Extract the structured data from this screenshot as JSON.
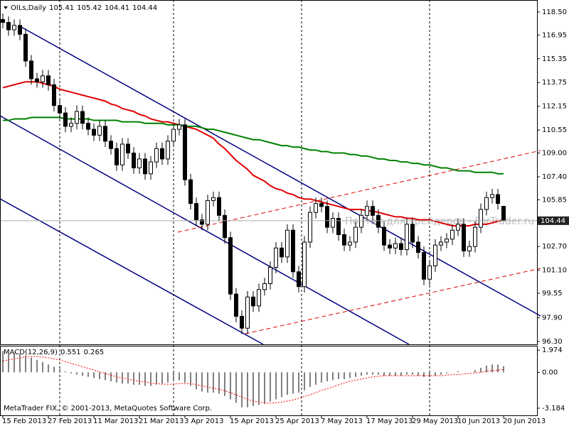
{
  "chart_data": [
    {
      "type": "candlestick",
      "title": "OILs,Daily",
      "watermark": "Портал для трейдеров - ForTrader.ru",
      "categories": [
        "15 Feb 2013",
        null,
        null,
        null,
        null,
        null,
        null,
        null,
        "27 Feb 2013",
        null,
        null,
        null,
        null,
        null,
        null,
        null,
        "11 Mar 2013",
        null,
        null,
        null,
        null,
        null,
        null,
        null,
        "21 Mar 2013",
        null,
        null,
        null,
        null,
        null,
        null,
        null,
        "3 Apr 2013",
        null,
        null,
        null,
        null,
        null,
        null,
        null,
        "15 Apr 2013",
        null,
        null,
        null,
        null,
        null,
        null,
        null,
        "25 Apr 2013",
        null,
        null,
        null,
        null,
        null,
        null,
        null,
        "7 May 2013",
        null,
        null,
        null,
        null,
        null,
        null,
        null,
        "17 May 2013",
        null,
        null,
        null,
        null,
        null,
        null,
        null,
        "29 May 2013",
        null,
        null,
        null,
        null,
        null,
        null,
        null,
        "10 Jun 2013",
        null,
        null,
        null,
        null,
        null,
        null,
        null,
        "20 Jun 2013"
      ],
      "open": [
        118.0,
        117.8,
        117.3,
        117.6,
        117.0,
        115.2,
        114.0,
        113.8,
        114.2,
        113.6,
        112.2,
        111.7,
        110.8,
        111.0,
        111.8,
        111.0,
        110.6,
        110.2,
        110.8,
        109.8,
        109.3,
        108.2,
        109.6,
        109.0,
        108.0,
        108.6,
        107.6,
        108.4,
        109.3,
        108.6,
        109.8,
        110.6,
        110.9,
        107.2,
        105.6,
        104.5,
        104.2,
        105.8,
        106.0,
        104.8,
        103.3,
        99.5,
        98.0,
        97.2,
        99.3,
        98.7,
        99.8,
        100.2,
        101.3,
        102.6,
        102.0,
        103.8,
        101.0,
        100.0,
        103.0,
        105.0,
        105.6,
        105.4,
        104.0,
        104.6,
        103.5,
        102.8,
        103.0,
        104.0,
        104.8,
        105.4,
        104.8,
        104.0,
        102.8,
        102.6,
        102.9,
        102.5,
        104.2,
        103.0,
        102.3,
        100.5,
        101.4,
        102.8,
        103.0,
        103.2,
        103.8,
        104.2,
        102.4,
        102.7,
        104.0,
        105.2,
        106.0,
        106.2,
        105.41
      ],
      "high": [
        118.4,
        118.2,
        118.0,
        118.0,
        117.4,
        115.6,
        114.4,
        114.6,
        114.6,
        114.0,
        112.6,
        112.1,
        111.4,
        112.2,
        112.2,
        111.4,
        111.0,
        111.2,
        111.2,
        110.2,
        109.7,
        110.0,
        110.0,
        109.4,
        109.0,
        109.0,
        108.8,
        109.7,
        109.7,
        110.2,
        111.0,
        111.3,
        111.3,
        107.6,
        106.0,
        104.9,
        106.2,
        106.4,
        106.4,
        105.2,
        103.7,
        99.9,
        98.4,
        99.7,
        99.7,
        100.2,
        100.6,
        101.7,
        103.0,
        103.0,
        104.2,
        104.2,
        101.4,
        103.4,
        105.4,
        106.0,
        106.0,
        105.8,
        105.0,
        105.0,
        103.9,
        103.4,
        104.4,
        105.2,
        105.8,
        105.8,
        105.2,
        104.4,
        103.2,
        103.3,
        103.3,
        104.6,
        104.6,
        103.4,
        102.7,
        101.8,
        103.2,
        103.4,
        103.6,
        104.2,
        104.6,
        104.6,
        103.1,
        104.4,
        105.6,
        106.4,
        106.6,
        106.6,
        105.42
      ],
      "low": [
        117.4,
        116.9,
        116.9,
        116.6,
        114.8,
        113.6,
        113.4,
        113.4,
        113.2,
        111.8,
        111.3,
        110.4,
        110.4,
        110.6,
        110.6,
        110.2,
        109.8,
        109.8,
        109.4,
        108.9,
        107.8,
        107.8,
        108.6,
        107.6,
        107.6,
        107.2,
        107.2,
        108.0,
        108.2,
        108.2,
        109.4,
        110.2,
        106.8,
        105.2,
        104.1,
        103.8,
        103.8,
        105.4,
        104.4,
        102.9,
        99.1,
        97.6,
        96.8,
        96.8,
        98.3,
        98.3,
        99.4,
        99.8,
        100.9,
        101.6,
        101.6,
        100.6,
        99.6,
        99.6,
        102.6,
        104.6,
        105.0,
        103.6,
        103.6,
        103.1,
        102.4,
        102.4,
        102.6,
        103.6,
        104.4,
        104.4,
        103.6,
        102.4,
        102.2,
        102.2,
        102.1,
        102.1,
        102.6,
        101.9,
        100.1,
        100.1,
        101.0,
        102.4,
        102.6,
        102.8,
        103.4,
        102.0,
        102.0,
        102.3,
        103.6,
        104.8,
        105.6,
        105.2,
        104.41
      ],
      "close": [
        117.8,
        117.3,
        117.6,
        117.0,
        115.2,
        114.0,
        113.8,
        114.2,
        113.6,
        112.2,
        111.7,
        110.8,
        111.0,
        111.8,
        111.0,
        110.6,
        110.2,
        110.8,
        109.8,
        109.3,
        108.2,
        109.6,
        109.0,
        108.0,
        108.6,
        107.6,
        108.4,
        109.3,
        108.6,
        109.8,
        110.6,
        110.9,
        107.2,
        105.6,
        104.5,
        104.2,
        105.8,
        106.0,
        104.8,
        103.3,
        99.5,
        98.0,
        97.2,
        99.3,
        98.7,
        99.8,
        100.2,
        101.3,
        102.6,
        102.0,
        103.8,
        101.0,
        100.0,
        103.0,
        105.0,
        105.6,
        105.4,
        104.0,
        104.6,
        103.5,
        102.8,
        103.0,
        104.0,
        104.8,
        105.4,
        104.8,
        104.0,
        102.8,
        102.6,
        102.9,
        102.5,
        104.2,
        103.0,
        102.3,
        100.5,
        101.4,
        102.8,
        103.0,
        103.2,
        103.8,
        104.2,
        102.4,
        102.7,
        104.0,
        105.2,
        106.0,
        106.2,
        105.6,
        104.44
      ],
      "up_color": "#ffffff",
      "down_color": "#000000",
      "series": [
        {
          "color": "#e00000",
          "values": [
            113.4,
            113.5,
            113.6,
            113.7,
            113.8,
            113.8,
            113.8,
            113.7,
            113.6,
            113.5,
            113.3,
            113.2,
            113.1,
            113.0,
            112.9,
            112.8,
            112.7,
            112.6,
            112.5,
            112.3,
            112.2,
            112.0,
            111.9,
            111.8,
            111.6,
            111.5,
            111.3,
            111.2,
            111.1,
            111.1,
            111.0,
            110.9,
            110.8,
            110.7,
            110.6,
            110.4,
            110.2,
            110.0,
            109.6,
            109.3,
            108.9,
            108.5,
            108.2,
            107.9,
            107.5,
            107.3,
            107.1,
            106.8,
            106.6,
            106.5,
            106.3,
            106.2,
            106.0,
            105.9,
            105.9,
            105.8,
            105.7,
            105.6,
            105.5,
            105.4,
            105.3,
            105.2,
            105.2,
            105.2,
            105.1,
            105.1,
            105.0,
            104.9,
            104.8,
            104.7,
            104.7,
            104.6,
            104.6,
            104.5,
            104.5,
            104.5,
            104.4,
            104.3,
            104.2,
            104.1,
            104.1,
            104.1,
            104.1,
            104.2,
            104.2,
            104.2,
            104.3,
            104.4,
            104.5
          ]
        },
        {
          "color": "#008000",
          "values": [
            111.2,
            111.2,
            111.3,
            111.3,
            111.3,
            111.4,
            111.4,
            111.4,
            111.4,
            111.4,
            111.4,
            111.3,
            111.3,
            111.3,
            111.3,
            111.3,
            111.2,
            111.2,
            111.2,
            111.2,
            111.2,
            111.1,
            111.1,
            111.1,
            111.1,
            111.0,
            111.0,
            111.0,
            111.0,
            110.9,
            110.9,
            110.9,
            110.8,
            110.8,
            110.8,
            110.7,
            110.6,
            110.6,
            110.5,
            110.4,
            110.3,
            110.2,
            110.1,
            110.0,
            109.9,
            109.9,
            109.8,
            109.7,
            109.6,
            109.5,
            109.5,
            109.4,
            109.4,
            109.3,
            109.2,
            109.2,
            109.1,
            109.1,
            109.0,
            109.0,
            109.0,
            108.9,
            108.9,
            108.8,
            108.8,
            108.7,
            108.6,
            108.6,
            108.5,
            108.5,
            108.4,
            108.4,
            108.3,
            108.3,
            108.2,
            108.2,
            108.1,
            108.0,
            108.0,
            107.9,
            107.8,
            107.8,
            107.8,
            107.7,
            107.7,
            107.7,
            107.7,
            107.6,
            107.6
          ]
        }
      ],
      "ylim": [
        96.11,
        119.31
      ],
      "yticks": [
        {
          "value": 118.5,
          "label": "118.50"
        },
        116.95,
        115.35,
        113.75,
        112.15,
        110.55,
        {
          "value": 109,
          "label": "109.00"
        },
        {
          "value": 107.4,
          "label": "107.40"
        },
        105.85,
        {
          "value": 102.7,
          "label": "102.70"
        },
        {
          "value": 101.1,
          "label": "101.10"
        },
        99.55,
        {
          "value": 97.9,
          "label": "97.90"
        },
        {
          "value": 96.3,
          "label": "96.30"
        }
      ]
    },
    {
      "type": "macd",
      "title": "MACD(12,26,9)",
      "series": [
        {
          "color": "#000000",
          "values": [
            1.9,
            1.8,
            1.7,
            1.6,
            1.5,
            1.3,
            1.1,
            0.9,
            0.7,
            0.5,
            0.3,
            0.1,
            -0.1,
            -0.2,
            -0.3,
            -0.4,
            -0.5,
            -0.6,
            -0.7,
            -0.8,
            -0.9,
            -1.0,
            -1.0,
            -1.1,
            -1.1,
            -1.2,
            -1.2,
            -1.1,
            -1.0,
            -0.9,
            -0.8,
            -0.7,
            -0.9,
            -1.2,
            -1.5,
            -1.7,
            -1.8,
            -1.8,
            -1.9,
            -2.1,
            -2.4,
            -2.7,
            -3.1,
            -3.1,
            -3.0,
            -2.9,
            -2.8,
            -2.6,
            -2.4,
            -2.2,
            -2.0,
            -1.9,
            -1.8,
            -1.6,
            -1.3,
            -1.1,
            -0.9,
            -0.8,
            -0.7,
            -0.6,
            -0.6,
            -0.5,
            -0.4,
            -0.3,
            -0.2,
            -0.2,
            -0.2,
            -0.3,
            -0.3,
            -0.3,
            -0.3,
            -0.2,
            -0.2,
            -0.3,
            -0.4,
            -0.4,
            -0.3,
            -0.2,
            -0.1,
            0.0,
            0.1,
            0.0,
            0.0,
            0.2,
            0.4,
            0.6,
            0.7,
            0.7,
            0.551
          ]
        },
        {
          "color": "#ff0000",
          "values": [
            1.0,
            1.1,
            1.2,
            1.3,
            1.35,
            1.4,
            1.4,
            1.35,
            1.3,
            1.2,
            1.1,
            0.95,
            0.8,
            0.65,
            0.5,
            0.35,
            0.2,
            0.05,
            -0.1,
            -0.25,
            -0.4,
            -0.5,
            -0.6,
            -0.7,
            -0.8,
            -0.85,
            -0.95,
            -1.0,
            -1.05,
            -1.05,
            -1.05,
            -1.0,
            -1.0,
            -1.0,
            -1.1,
            -1.2,
            -1.3,
            -1.4,
            -1.5,
            -1.65,
            -1.8,
            -2.0,
            -2.2,
            -2.4,
            -2.55,
            -2.65,
            -2.7,
            -2.75,
            -2.7,
            -2.65,
            -2.55,
            -2.45,
            -2.3,
            -2.15,
            -2.0,
            -1.8,
            -1.6,
            -1.45,
            -1.3,
            -1.1,
            -0.95,
            -0.8,
            -0.7,
            -0.6,
            -0.5,
            -0.4,
            -0.35,
            -0.3,
            -0.3,
            -0.3,
            -0.3,
            -0.3,
            -0.3,
            -0.3,
            -0.3,
            -0.3,
            -0.3,
            -0.3,
            -0.25,
            -0.2,
            -0.2,
            -0.15,
            -0.1,
            -0.05,
            0.0,
            0.1,
            0.15,
            0.2,
            0.265
          ]
        }
      ],
      "ylim": [
        -3.82,
        2.36
      ],
      "yticks": [
        1.974,
        {
          "value": 0,
          "label": "0.00"
        },
        -3.184
      ]
    }
  ],
  "footer": "MetaTrader FIX, © 2001-2013, MetaQuotes Software Corp."
}
